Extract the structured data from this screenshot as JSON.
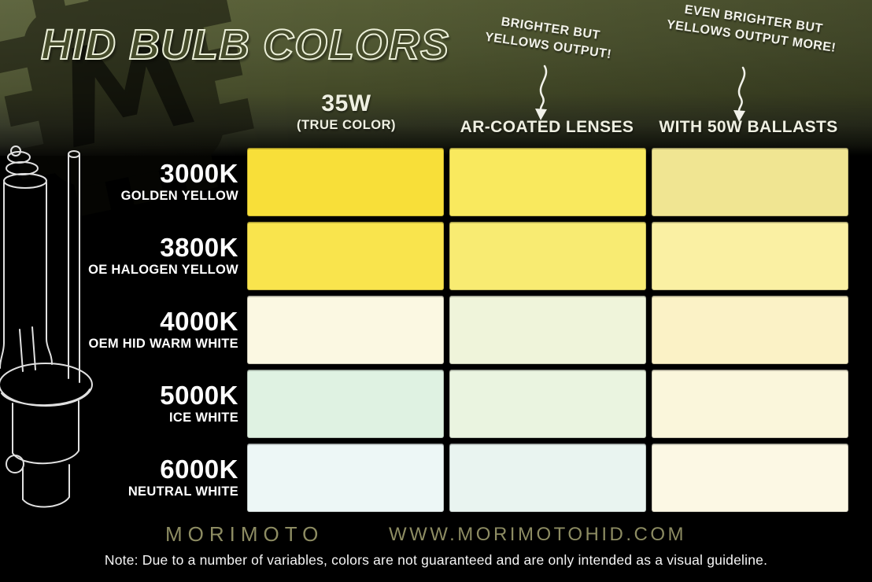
{
  "title": "HID BULB COLORS",
  "annotations": [
    {
      "text": "BRIGHTER BUT\nYELLOWS OUTPUT!"
    },
    {
      "text": "EVEN BRIGHTER BUT\nYELLOWS OUTPUT MORE!"
    }
  ],
  "chart_data": {
    "type": "table",
    "title": "HID BULB COLORS",
    "columns": [
      {
        "label": "35W",
        "sublabel": "(TRUE COLOR)"
      },
      {
        "label": "AR-COATED LENSES",
        "sublabel": ""
      },
      {
        "label": "WITH 50W BALLASTS",
        "sublabel": ""
      }
    ],
    "rows": [
      {
        "kelvin": "3000K",
        "name": "GOLDEN YELLOW",
        "swatches": [
          "#f8df39",
          "#f9e95e",
          "#f0e592"
        ]
      },
      {
        "kelvin": "3800K",
        "name": "OE HALOGEN YELLOW",
        "swatches": [
          "#f9e44d",
          "#f8eb72",
          "#faf0a3"
        ]
      },
      {
        "kelvin": "4000K",
        "name": "OEM HID WARM WHITE",
        "swatches": [
          "#fbf8e2",
          "#eff4da",
          "#fbf2c6"
        ]
      },
      {
        "kelvin": "5000K",
        "name": "ICE WHITE",
        "swatches": [
          "#dff2e2",
          "#eaf4e0",
          "#faf6db"
        ]
      },
      {
        "kelvin": "6000K",
        "name": "NEUTRAL WHITE",
        "swatches": [
          "#edf7f6",
          "#e9f4f0",
          "#fcf8e4"
        ]
      }
    ],
    "legend_position": "none",
    "grid": "black gaps between swatch cells"
  },
  "footer": {
    "brand": "MORIMOTO",
    "website": "WWW.MORIMOTOHID.COM",
    "note": "Note: Due to a number of variables, colors are not guaranteed and are only intended as a visual guideline."
  },
  "icons": {
    "logo": "morimoto-m-gear-logo",
    "bulb": "hid-bulb-line-art",
    "arrow": "down-squiggle-arrow"
  },
  "colors": {
    "background_olive": "#4f5631",
    "table_background": "#000000",
    "header_text": "#eff0e2",
    "footer_text": "#8d8c62",
    "note_text": "#f5f5f5"
  }
}
